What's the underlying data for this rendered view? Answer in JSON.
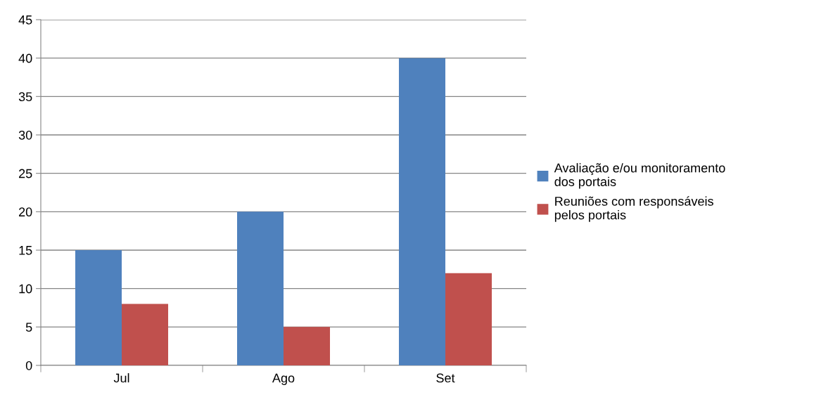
{
  "chart_data": {
    "type": "bar",
    "categories": [
      "Jul",
      "Ago",
      "Set"
    ],
    "series": [
      {
        "name": "Avaliação e/ou monitoramento dos portais",
        "color": "#4f81bd",
        "values": [
          15,
          20,
          40
        ]
      },
      {
        "name": "Reuniões com responsáveis pelos portais",
        "color": "#c0504d",
        "values": [
          8,
          5,
          12
        ]
      }
    ],
    "ylim": [
      0,
      45
    ],
    "yticks": [
      0,
      5,
      10,
      15,
      20,
      25,
      30,
      35,
      40,
      45
    ],
    "grid": "y",
    "legend": "right"
  }
}
